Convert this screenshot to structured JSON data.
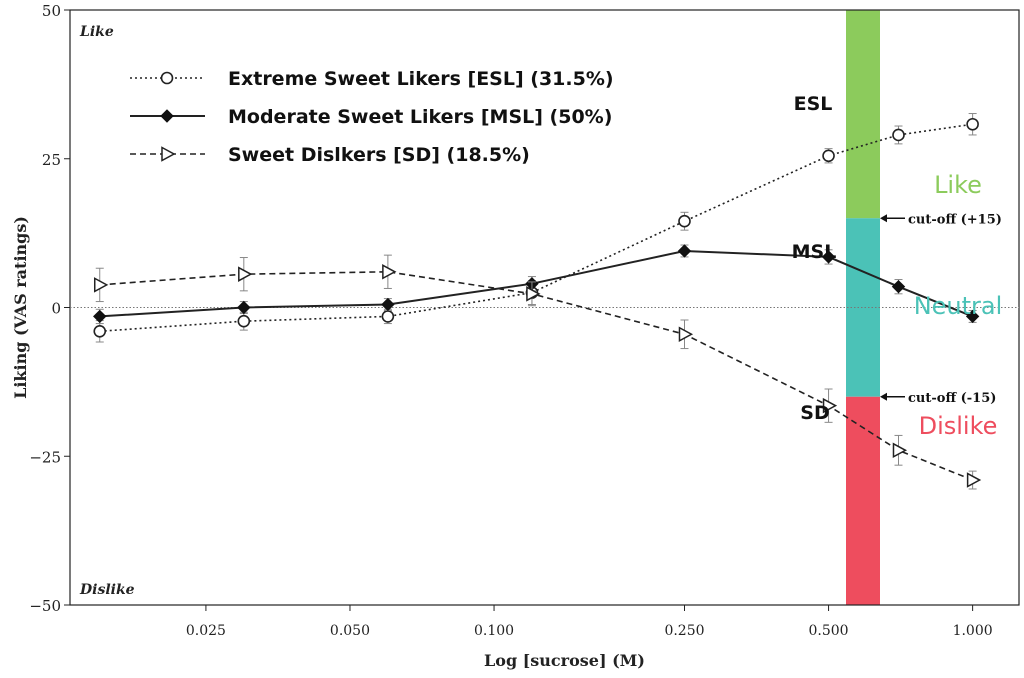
{
  "chart_data": {
    "type": "line",
    "xlabel": "Log [sucrose] (M)",
    "ylabel": "Liking (VAS ratings)",
    "xscale": "log",
    "xlim": [
      0.013,
      1.25
    ],
    "ylim": [
      -50,
      50
    ],
    "x_ticks": [
      0.025,
      0.05,
      0.1,
      0.25,
      0.5,
      1.0
    ],
    "x_tick_labels": [
      "0.025",
      "0.050",
      "0.100",
      "0.250",
      "0.500",
      "1.000"
    ],
    "y_ticks": [
      -50,
      -25,
      0,
      25,
      50
    ],
    "y_tick_labels": [
      "−50",
      "−25",
      "0",
      "25",
      "50"
    ],
    "zero_line": true,
    "corner_labels": {
      "top": "Like",
      "bottom": "Dislike"
    },
    "legend_position": "top-left",
    "series": [
      {
        "name": "Extreme Sweet Likers [ESL] (31.5%)",
        "short_label": "ESL",
        "marker": "open-circle",
        "line_style": "dotted",
        "x": [
          0.015,
          0.03,
          0.06,
          0.12,
          0.25,
          0.5,
          0.7,
          1.0
        ],
        "y": [
          -4,
          -2.3,
          -1.5,
          2.5,
          14.5,
          25.5,
          29,
          30.8
        ],
        "error": [
          1.8,
          1.5,
          1.2,
          2,
          1.5,
          1.2,
          1.5,
          1.8
        ]
      },
      {
        "name": "Moderate Sweet Likers [MSL] (50%)",
        "short_label": "MSL",
        "marker": "filled-diamond",
        "line_style": "solid",
        "x": [
          0.015,
          0.03,
          0.06,
          0.12,
          0.25,
          0.5,
          0.7,
          1.0
        ],
        "y": [
          -1.5,
          0,
          0.5,
          4,
          9.5,
          8.5,
          3.5,
          -1.5
        ],
        "error": [
          1.2,
          1,
          1,
          1.2,
          1,
          1.2,
          1.2,
          1
        ]
      },
      {
        "name": "Sweet Dislkers [SD] (18.5%)",
        "short_label": "SD",
        "marker": "open-triangle-right",
        "line_style": "dashed",
        "x": [
          0.015,
          0.03,
          0.06,
          0.12,
          0.25,
          0.5,
          0.7,
          1.0
        ],
        "y": [
          3.8,
          5.6,
          6,
          2.3,
          -4.5,
          -16.5,
          -24,
          -29
        ],
        "error": [
          2.8,
          2.8,
          2.8,
          2,
          2.4,
          2.8,
          2.5,
          1.5
        ]
      }
    ],
    "bands": [
      {
        "label": "Like",
        "from": 15,
        "to": 50,
        "color": "#8CCB5C",
        "label_color": "#8CCB5C"
      },
      {
        "label": "Neutral",
        "from": -15,
        "to": 15,
        "color": "#4BC2B7",
        "label_color": "#4BC2B7"
      },
      {
        "label": "Dislike",
        "from": -50,
        "to": -15,
        "color": "#EE4D5E",
        "label_color": "#EE4D5E"
      }
    ],
    "cutoffs": [
      {
        "value": 15,
        "label": "cut-off (+15)"
      },
      {
        "value": -15,
        "label": "cut-off (-15)"
      }
    ]
  }
}
